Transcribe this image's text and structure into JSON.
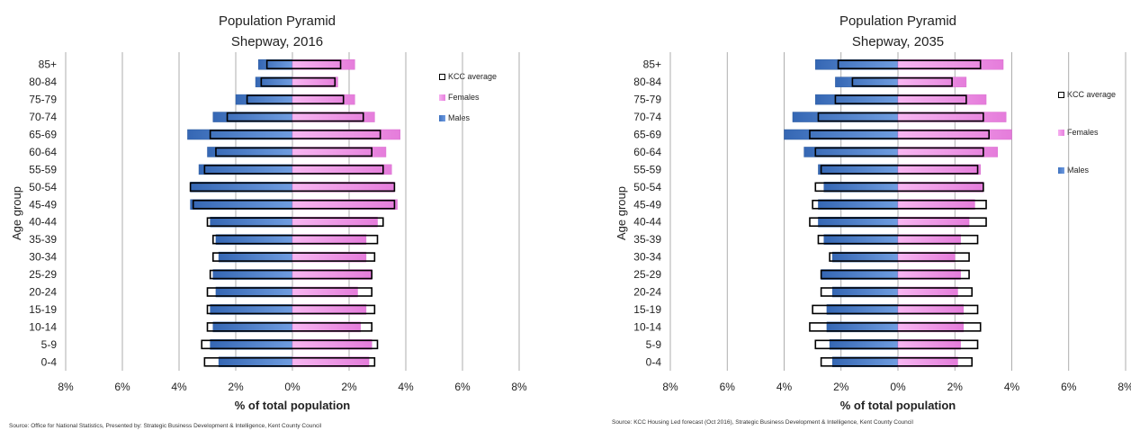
{
  "chart_data": [
    {
      "type": "bar",
      "title": "Population Pyramid",
      "subtitle": "Shepway, 2016",
      "xlabel": "% of total population",
      "ylabel": "Age group",
      "xlim": [
        -8,
        8
      ],
      "x_ticks": [
        "8%",
        "6%",
        "4%",
        "2%",
        "0%",
        "2%",
        "4%",
        "6%",
        "8%"
      ],
      "grid": true,
      "legend_position": "top-right",
      "categories": [
        "0-4",
        "5-9",
        "10-14",
        "15-19",
        "20-24",
        "25-29",
        "30-34",
        "35-39",
        "40-44",
        "45-49",
        "50-54",
        "55-59",
        "60-64",
        "65-69",
        "70-74",
        "75-79",
        "80-84",
        "85+"
      ],
      "series": [
        {
          "name": "Males",
          "values": [
            2.6,
            2.9,
            2.8,
            2.9,
            2.7,
            2.8,
            2.6,
            2.7,
            2.9,
            3.6,
            3.6,
            3.3,
            3.0,
            3.7,
            2.8,
            2.0,
            1.3,
            1.2
          ]
        },
        {
          "name": "Females",
          "values": [
            2.7,
            2.8,
            2.4,
            2.6,
            2.3,
            2.8,
            2.6,
            2.6,
            3.0,
            3.7,
            3.6,
            3.5,
            3.3,
            3.8,
            2.9,
            2.2,
            1.6,
            2.2
          ]
        },
        {
          "name": "KCC average",
          "male_values": [
            3.1,
            3.2,
            3.0,
            3.0,
            3.0,
            2.9,
            2.8,
            2.8,
            3.0,
            3.5,
            3.6,
            3.1,
            2.7,
            2.9,
            2.3,
            1.6,
            1.1,
            0.9
          ],
          "female_values": [
            2.9,
            3.0,
            2.8,
            2.9,
            2.8,
            2.8,
            2.9,
            3.0,
            3.2,
            3.6,
            3.6,
            3.2,
            2.8,
            3.1,
            2.5,
            1.8,
            1.5,
            1.7
          ]
        }
      ]
    },
    {
      "type": "bar",
      "title": "Population Pyramid",
      "subtitle": "Shepway, 2035",
      "xlabel": "% of total population",
      "ylabel": "Age group",
      "xlim": [
        -8,
        8
      ],
      "x_ticks": [
        "8%",
        "6%",
        "4%",
        "2%",
        "0%",
        "2%",
        "4%",
        "6%",
        "8%"
      ],
      "grid": true,
      "legend_position": "top-right",
      "categories": [
        "0-4",
        "5-9",
        "10-14",
        "15-19",
        "20-24",
        "25-29",
        "30-34",
        "35-39",
        "40-44",
        "45-49",
        "50-54",
        "55-59",
        "60-64",
        "65-69",
        "70-74",
        "75-79",
        "80-84",
        "85+"
      ],
      "series": [
        {
          "name": "Males",
          "values": [
            2.3,
            2.4,
            2.5,
            2.5,
            2.3,
            2.7,
            2.3,
            2.6,
            2.8,
            2.8,
            2.6,
            2.8,
            3.3,
            4.0,
            3.7,
            2.9,
            2.2,
            2.9
          ]
        },
        {
          "name": "Females",
          "values": [
            2.1,
            2.2,
            2.3,
            2.3,
            2.1,
            2.2,
            2.0,
            2.2,
            2.5,
            2.7,
            3.0,
            2.9,
            3.5,
            4.0,
            3.8,
            3.1,
            2.4,
            3.7
          ]
        },
        {
          "name": "KCC average",
          "male_values": [
            2.7,
            2.9,
            3.1,
            3.0,
            2.7,
            2.7,
            2.4,
            2.8,
            3.1,
            3.0,
            2.9,
            2.7,
            2.9,
            3.1,
            2.8,
            2.2,
            1.6,
            2.1
          ],
          "female_values": [
            2.6,
            2.8,
            2.9,
            2.8,
            2.6,
            2.5,
            2.5,
            2.8,
            3.1,
            3.1,
            3.0,
            2.8,
            3.0,
            3.2,
            3.0,
            2.4,
            1.9,
            2.9
          ]
        }
      ]
    }
  ],
  "panels": [
    {
      "title": "Population Pyramid",
      "subtitle": "Shepway, 2016",
      "source": "Source: Office for National Statistics, Presented by: Strategic Business Development & Intelligence, Kent County Council",
      "legend": [
        "KCC average",
        "Females",
        "Males"
      ]
    },
    {
      "title": "Population Pyramid",
      "subtitle": "Shepway, 2035",
      "source": "Source: KCC Housing Led forecast (Oct 2016), Strategic Business Development & Intelligence, Kent County Council",
      "legend": [
        "KCC average",
        "Females",
        "Males"
      ]
    }
  ],
  "colors": {
    "male": "#4a7cc6",
    "female": "#ef9ae8",
    "kcc_outline": "#000000",
    "grid": "#9a9a9a"
  }
}
